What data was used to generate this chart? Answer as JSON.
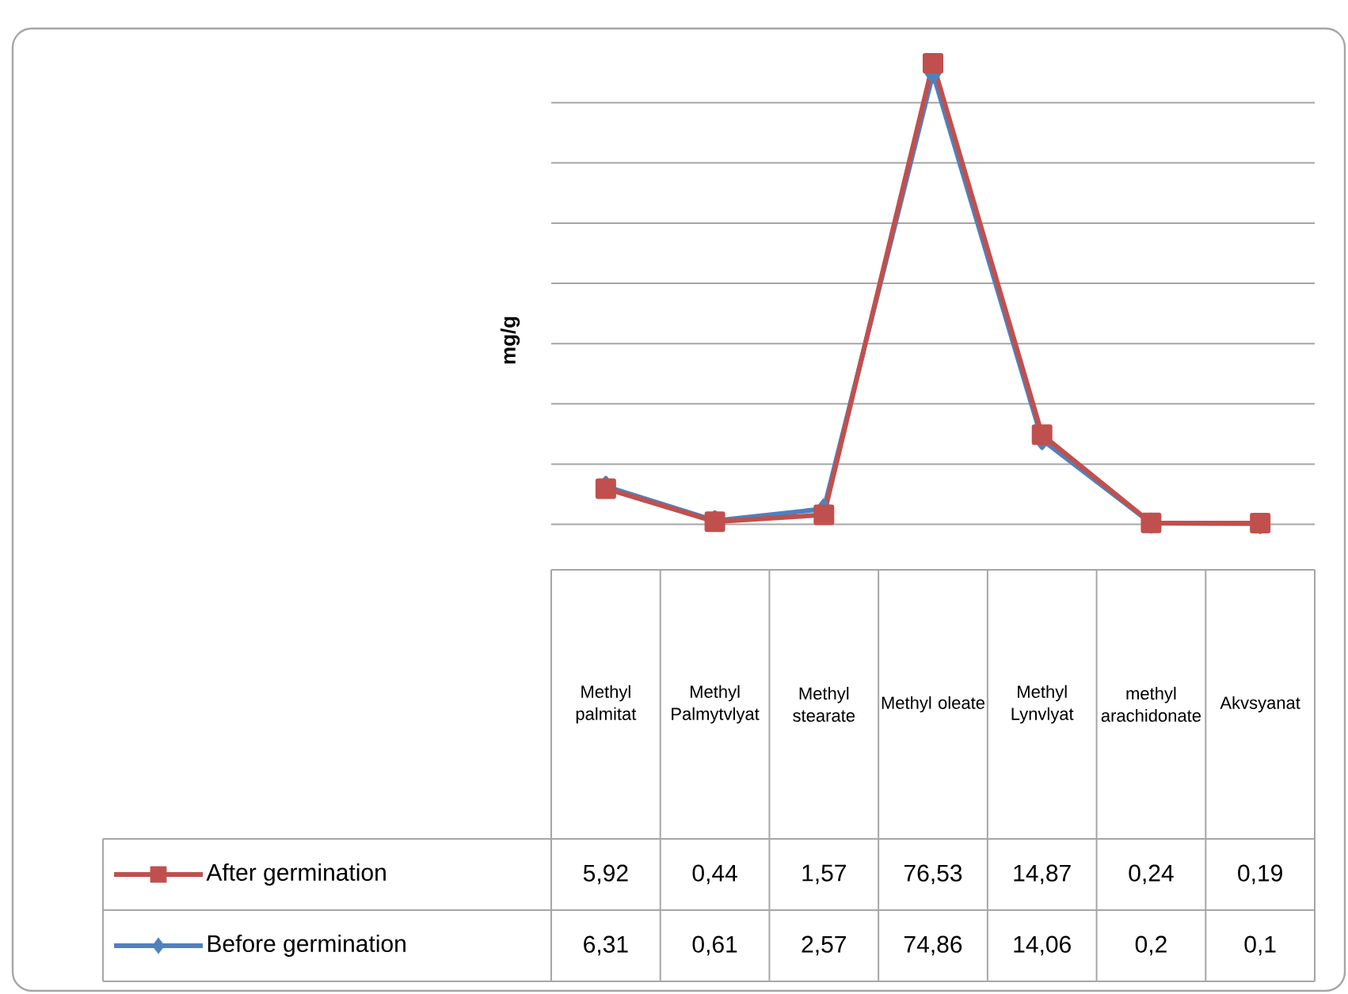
{
  "chart_data": {
    "type": "line",
    "ylabel": "mg/g",
    "categories": [
      "Methyl palmitat",
      "Methyl Palmytvlyat",
      "Methyl stearate",
      "Methyl oleate",
      "Methyl Lynvlyat",
      "methyl arachidonate",
      "Akvsyanat"
    ],
    "series": [
      {
        "name": "After germination",
        "color": "#c0504d",
        "marker": "square",
        "values": [
          5.92,
          0.44,
          1.57,
          76.53,
          14.87,
          0.24,
          0.19
        ],
        "value_labels": [
          "5,92",
          "0,44",
          "1,57",
          "76,53",
          "14,87",
          "0,24",
          "0,19"
        ]
      },
      {
        "name": "Before germination",
        "color": "#4f81bd",
        "marker": "diamond",
        "values": [
          6.31,
          0.61,
          2.57,
          74.86,
          14.06,
          0.2,
          0.1
        ],
        "value_labels": [
          "6,31",
          "0,61",
          "2,57",
          "74,86",
          "14,06",
          "0,2",
          "0,1"
        ]
      }
    ],
    "grid": "y",
    "tick_labels": "x",
    "legend": "bottom left"
  }
}
